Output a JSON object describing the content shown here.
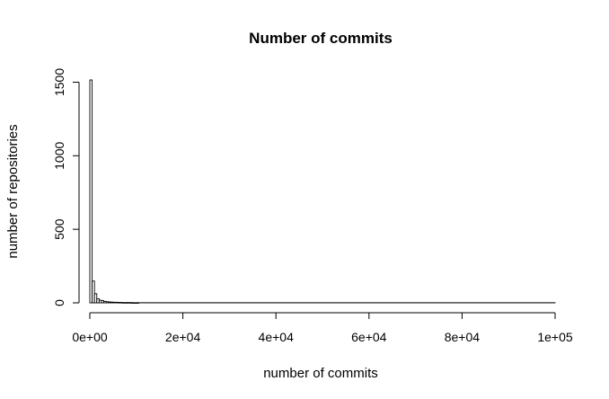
{
  "chart_data": {
    "type": "bar",
    "title": "Number of commits",
    "xlabel": "number of commits",
    "ylabel": "number of repositories",
    "xlim": [
      0,
      100000
    ],
    "ylim": [
      0,
      1515
    ],
    "x_ticks": [
      0,
      20000,
      40000,
      60000,
      80000,
      100000
    ],
    "x_tick_labels": [
      "0e+00",
      "2e+04",
      "4e+04",
      "6e+04",
      "8e+04",
      "1e+05"
    ],
    "y_ticks": [
      0,
      500,
      1000,
      1500
    ],
    "y_tick_labels": [
      "0",
      "500",
      "1000",
      "1500"
    ],
    "bin_width": 500,
    "bin_starts": [
      0,
      500,
      1000,
      1500,
      2000,
      2500,
      3000,
      3500,
      4000,
      4500,
      5000,
      5500,
      6000,
      6500,
      7000,
      7500,
      8000,
      8500,
      9000,
      9500,
      10000
    ],
    "values": [
      1515,
      148,
      62,
      28,
      18,
      15,
      10,
      8,
      6,
      5,
      4,
      4,
      3,
      3,
      2,
      2,
      2,
      2,
      1,
      1,
      1
    ],
    "tail_value": 1,
    "grid": false,
    "legend": "none"
  }
}
